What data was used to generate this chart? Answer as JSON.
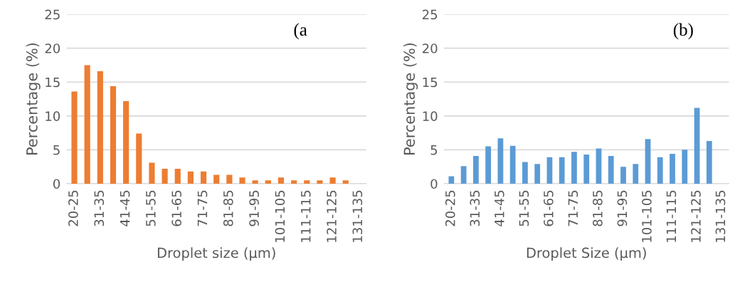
{
  "chart_data": [
    {
      "type": "bar",
      "categories": [
        "20-25",
        null,
        "31-35",
        null,
        "41-45",
        null,
        "51-55",
        null,
        "61-65",
        null,
        "71-75",
        null,
        "81-85",
        null,
        "91-95",
        null,
        "101-105",
        null,
        "111-115",
        null,
        "121-125",
        null,
        "131-135"
      ],
      "values": [
        13.6,
        17.5,
        16.6,
        14.4,
        12.2,
        7.4,
        3.1,
        2.2,
        2.2,
        1.8,
        1.8,
        1.3,
        1.3,
        0.9,
        0.5,
        0.5,
        0.9,
        0.5,
        0.5,
        0.5,
        0.9,
        0.5,
        null
      ],
      "color": "#ed7d31",
      "xlabel": "Droplet size (µm)",
      "ylabel": "Percentage (%)",
      "ylim": [
        0,
        25
      ],
      "yticks": [
        0,
        5,
        10,
        15,
        20,
        25
      ],
      "grid": "y",
      "annotations": [
        "(a"
      ]
    },
    {
      "type": "bar",
      "categories": [
        "20-25",
        null,
        "31-35",
        null,
        "41-45",
        null,
        "51-55",
        null,
        "61-65",
        null,
        "71-75",
        null,
        "81-85",
        null,
        "91-95",
        null,
        "101-105",
        null,
        "111-115",
        null,
        "121-125",
        null,
        "131-135"
      ],
      "values": [
        1.1,
        2.6,
        4.1,
        5.5,
        6.7,
        5.6,
        3.2,
        2.9,
        3.9,
        3.9,
        4.7,
        4.3,
        5.2,
        4.1,
        2.5,
        2.9,
        6.6,
        3.9,
        4.4,
        5.0,
        11.2,
        6.3,
        null
      ],
      "color": "#5b9bd5",
      "xlabel": "Droplet Size (µm)",
      "ylabel": "Percentage (%)",
      "ylim": [
        0,
        25
      ],
      "yticks": [
        0,
        5,
        10,
        15,
        20,
        25
      ],
      "grid": "y",
      "annotations": [
        "(b)"
      ]
    }
  ]
}
